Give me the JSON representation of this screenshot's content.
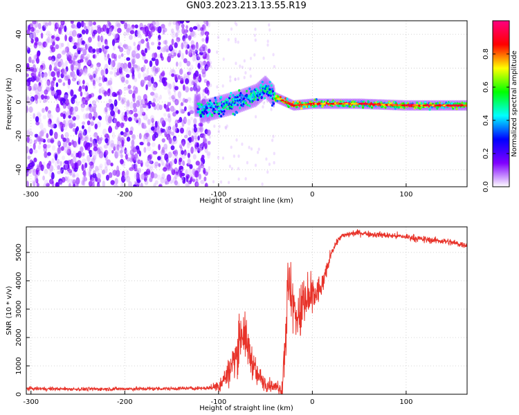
{
  "title": "GN03.2023.213.13.55.R19",
  "chart_data": [
    {
      "type": "heatmap",
      "xlabel": "Height of straight line (km)",
      "ylabel": "Frequency (Hz)",
      "xlim": [
        -305,
        165
      ],
      "ylim": [
        -50,
        48
      ],
      "x_ticks": [
        -300,
        -200,
        -100,
        0,
        100
      ],
      "y_ticks": [
        -40,
        -20,
        0,
        20,
        40
      ],
      "colorbar": {
        "label": "Normalized spectral amplitude",
        "range": [
          0,
          1
        ],
        "ticks": [
          "0.0",
          "0.2",
          "0.4",
          "0.6",
          "0.8"
        ],
        "colors": [
          "#ffffff",
          "#8000ff",
          "#0000ff",
          "#00ffff",
          "#00ff00",
          "#ffff00",
          "#ff0000",
          "#ff0080"
        ]
      },
      "features": {
        "noise_region_x": [
          -305,
          -110
        ],
        "signal_track": [
          {
            "x": -120,
            "y": -6
          },
          {
            "x": -100,
            "y": -3
          },
          {
            "x": -80,
            "y": 0
          },
          {
            "x": -60,
            "y": 4
          },
          {
            "x": -50,
            "y": 9
          },
          {
            "x": -40,
            "y": 3
          },
          {
            "x": -20,
            "y": -2
          },
          {
            "x": 0,
            "y": -1
          },
          {
            "x": 50,
            "y": -1
          },
          {
            "x": 100,
            "y": -2
          },
          {
            "x": 165,
            "y": -2
          }
        ]
      }
    },
    {
      "type": "line",
      "xlabel": "Height of straight line (km)",
      "ylabel": "SNR (10 * v/v)",
      "xlim": [
        -305,
        165
      ],
      "ylim": [
        0,
        5900
      ],
      "x_ticks": [
        -300,
        -200,
        -100,
        0,
        100
      ],
      "y_ticks": [
        0,
        1000,
        2000,
        3000,
        4000,
        5000
      ],
      "series": [
        {
          "color": "#e8332a",
          "x": [
            -305,
            -250,
            -200,
            -150,
            -110,
            -100,
            -90,
            -80,
            -75,
            -70,
            -60,
            -50,
            -40,
            -32,
            -28,
            -25,
            -20,
            -15,
            -10,
            -5,
            0,
            5,
            10,
            15,
            20,
            25,
            30,
            40,
            50,
            60,
            80,
            100,
            120,
            140,
            165
          ],
          "y": [
            200,
            180,
            190,
            200,
            220,
            300,
            700,
            1500,
            2300,
            1800,
            700,
            400,
            250,
            300,
            2500,
            4000,
            3000,
            2700,
            3000,
            3300,
            3400,
            3600,
            3800,
            4300,
            5000,
            5300,
            5550,
            5650,
            5700,
            5650,
            5600,
            5550,
            5450,
            5400,
            5250
          ],
          "noise": [
            60,
            60,
            60,
            60,
            60,
            250,
            450,
            700,
            800,
            700,
            400,
            250,
            150,
            400,
            1200,
            1000,
            900,
            900,
            900,
            700,
            700,
            500,
            350,
            250,
            150,
            120,
            100,
            100,
            100,
            100,
            100,
            110,
            110,
            110,
            110
          ]
        }
      ]
    }
  ]
}
